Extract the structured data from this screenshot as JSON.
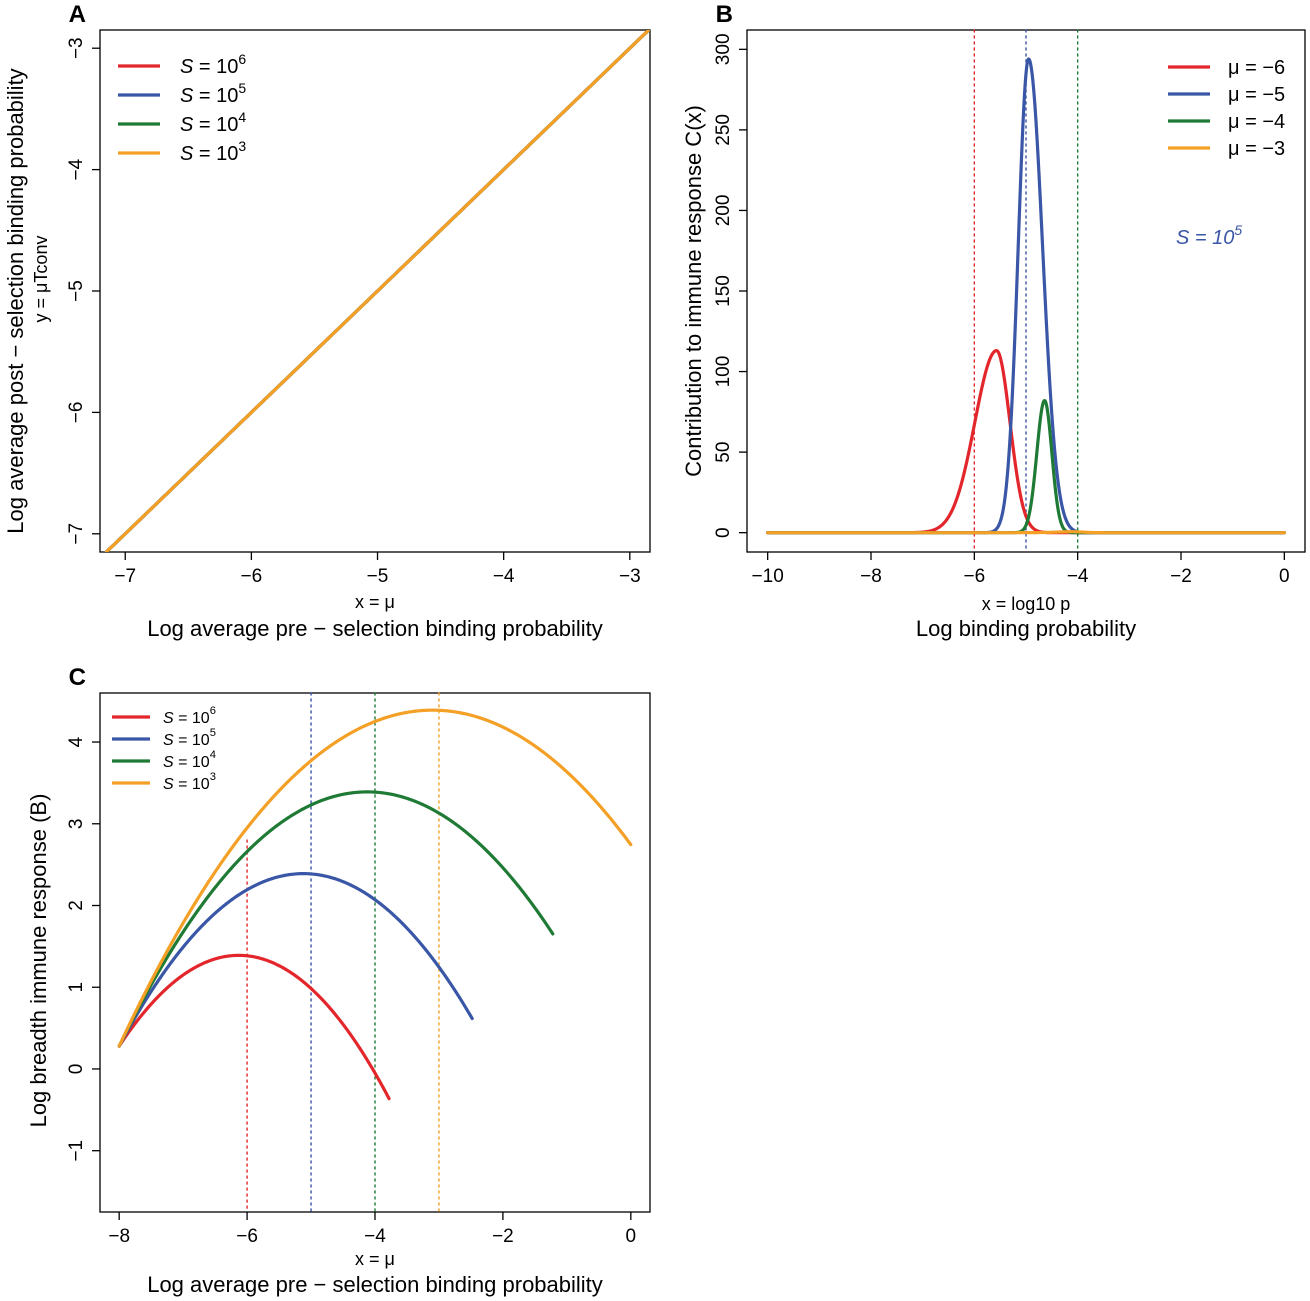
{
  "colors": {
    "red": "#e3262b",
    "blue": "#3a56a6",
    "green": "#1e7a34",
    "orange": "#f4a026",
    "black": "#000000"
  },
  "chart_data": [
    {
      "id": "A",
      "type": "line",
      "panel_label": "A",
      "xlabel_sub": "x = μ",
      "xlabel": "Log average pre − selection binding probability",
      "ylabel_sub": "y = μTconv",
      "ylabel": "Log average post − selection binding probability",
      "xlim": [
        -7.2,
        -2.84
      ],
      "ylim": [
        -7.15,
        -2.85
      ],
      "xticks": [
        -7,
        -6,
        -5,
        -4,
        -3
      ],
      "xtick_labels": [
        "−7",
        "−6",
        "−5",
        "−4",
        "−3"
      ],
      "yticks": [
        -7,
        -6,
        -5,
        -4,
        -3
      ],
      "ytick_labels": [
        "−7",
        "−6",
        "−5",
        "−4",
        "−3"
      ],
      "legend_position": "top-left",
      "reference_line": {
        "from": [
          -7.2,
          -7.2
        ],
        "to": [
          -3,
          -3
        ],
        "style": "dotted"
      },
      "x_range": [
        -7.15,
        -2.84
      ],
      "series": [
        {
          "name": "S = 10^6",
          "base": "S = 10",
          "exp": "6",
          "color": "red",
          "log10S": 6
        },
        {
          "name": "S = 10^5",
          "base": "S = 10",
          "exp": "5",
          "color": "blue",
          "log10S": 5
        },
        {
          "name": "S = 10^4",
          "base": "S = 10",
          "exp": "4",
          "color": "green",
          "log10S": 4
        },
        {
          "name": "S = 10^3",
          "base": "S = 10",
          "exp": "3",
          "color": "orange",
          "log10S": 3
        }
      ]
    },
    {
      "id": "B",
      "type": "line",
      "panel_label": "B",
      "xlabel_sub": "x = log10 p",
      "xlabel": "Log binding probability",
      "ylabel": "Contribution to immune response C(x)",
      "xlim": [
        -10.4,
        0.4
      ],
      "ylim": [
        -12,
        312
      ],
      "xticks": [
        -10,
        -8,
        -6,
        -4,
        -2,
        0
      ],
      "xtick_labels": [
        "−10",
        "−8",
        "−6",
        "−4",
        "−2",
        "0"
      ],
      "yticks": [
        0,
        50,
        100,
        150,
        200,
        250,
        300
      ],
      "ytick_labels": [
        "0",
        "50",
        "100",
        "150",
        "200",
        "250",
        "300"
      ],
      "legend_position": "top-right",
      "annotation": {
        "base": "S = 10",
        "exp": "5"
      },
      "vlines": [
        {
          "x": -6,
          "color": "red"
        },
        {
          "x": -5,
          "color": "blue"
        },
        {
          "x": -4,
          "color": "green"
        }
      ],
      "series": [
        {
          "name": "μ = −6",
          "color": "red",
          "peak_x": -5.57,
          "peak_y": 113,
          "width_left": 0.42,
          "width_right": 0.26,
          "cut": -4.6
        },
        {
          "name": "μ = −5",
          "color": "blue",
          "peak_x": -4.95,
          "peak_y": 294,
          "width_left": 0.2,
          "width_right": 0.27,
          "cut": -4.0
        },
        {
          "name": "μ = −4",
          "color": "green",
          "peak_x": -4.64,
          "peak_y": 82,
          "width_left": 0.15,
          "width_right": 0.14,
          "cut": -3.95
        },
        {
          "name": "μ = −3",
          "color": "orange",
          "peak_x": -4.1,
          "peak_y": 0.6,
          "width_left": 0.3,
          "width_right": 0.2,
          "cut": -3.5
        }
      ]
    },
    {
      "id": "C",
      "type": "line",
      "panel_label": "C",
      "xlabel_sub": "x = μ",
      "xlabel": "Log average pre − selection binding probability",
      "ylabel": "Log breadth immune response (B)",
      "xlim": [
        -8.3,
        0.3
      ],
      "ylim": [
        -1.75,
        4.6
      ],
      "xticks": [
        -8,
        -6,
        -4,
        -2,
        0
      ],
      "xtick_labels": [
        "−8",
        "−6",
        "−4",
        "−2",
        "0"
      ],
      "yticks": [
        -1,
        0,
        1,
        2,
        3,
        4
      ],
      "ytick_labels": [
        "−1",
        "0",
        "1",
        "2",
        "3",
        "4"
      ],
      "legend_position": "top-left",
      "vlines": [
        {
          "x": -6,
          "color": "red",
          "top": 2.8
        },
        {
          "x": -5,
          "color": "blue",
          "top": 4.6
        },
        {
          "x": -4,
          "color": "green",
          "top": 4.6
        },
        {
          "x": -3,
          "color": "orange",
          "top": 4.6
        }
      ],
      "series": [
        {
          "name": "S = 10^6",
          "base": "S = 10",
          "exp": "6",
          "color": "red",
          "peak_x": -6.13,
          "peak_y": 1.39,
          "x_end": -3.78
        },
        {
          "name": "S = 10^5",
          "base": "S = 10",
          "exp": "5",
          "color": "blue",
          "peak_x": -5.12,
          "peak_y": 2.39,
          "x_end": -2.47
        },
        {
          "name": "S = 10^4",
          "base": "S = 10",
          "exp": "4",
          "color": "green",
          "peak_x": -4.12,
          "peak_y": 3.39,
          "x_end": -1.22
        },
        {
          "name": "S = 10^3",
          "base": "S = 10",
          "exp": "3",
          "color": "orange",
          "peak_x": -3.1,
          "peak_y": 4.39,
          "x_end": 0.0
        }
      ]
    }
  ]
}
